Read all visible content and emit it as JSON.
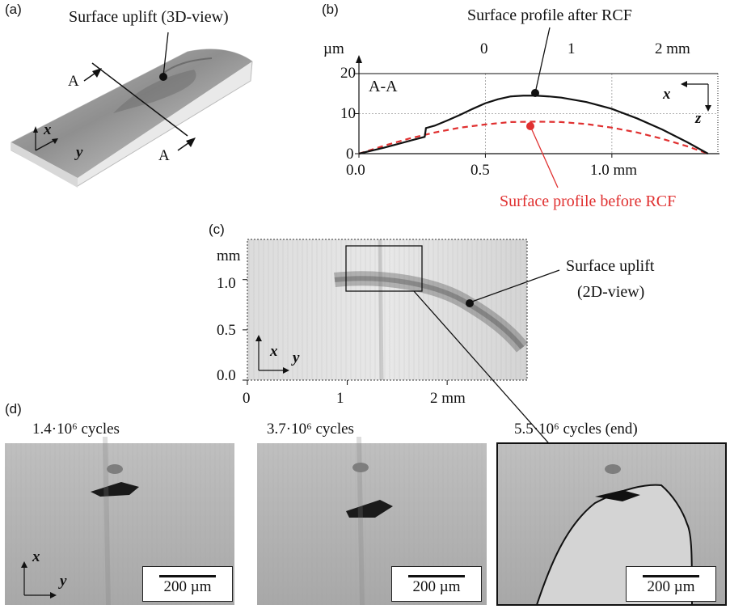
{
  "panels": {
    "a": {
      "label": "(a)",
      "annotation": "Surface uplift (3D-view)",
      "section_marker": "A",
      "axis_x": "x",
      "axis_y": "y"
    },
    "b": {
      "label": "(b)",
      "title_top": "Surface profile after RCF",
      "title_bottom": "Surface profile before RCF",
      "section_label": "A-A",
      "axis_x": "x",
      "axis_z": "z",
      "colors": {
        "after": "#111111",
        "before": "#e03030"
      }
    },
    "c": {
      "label": "(c)",
      "annotation_line1": "Surface uplift",
      "annotation_line2": "(2D-view)",
      "axis_x": "x",
      "axis_y": "y"
    },
    "d": {
      "label": "(d)",
      "images": [
        {
          "caption": "1.4·10⁶ cycles",
          "scale": "200 µm"
        },
        {
          "caption": "3.7·10⁶ cycles",
          "scale": "200 µm"
        },
        {
          "caption": "5.5·10⁶ cycles (end)",
          "scale": "200 µm"
        }
      ],
      "axis_x": "x",
      "axis_y": "y"
    }
  },
  "chart_data": [
    {
      "type": "line",
      "panel": "b",
      "xlabel": "mm",
      "ylabel": "µm",
      "xlim": [
        0.0,
        1.4
      ],
      "ylim": [
        0,
        20
      ],
      "x_ticks": [
        "0.0",
        "0.5",
        "1.0 mm"
      ],
      "y_ticks": [
        "0",
        "10",
        "20"
      ],
      "top_axis_unit": "µm",
      "top_ticks": [
        "0",
        "1",
        "2 mm"
      ],
      "grid": true,
      "series": [
        {
          "name": "Surface profile after RCF",
          "x": [
            0.0,
            0.1,
            0.2,
            0.26,
            0.265,
            0.3,
            0.35,
            0.4,
            0.45,
            0.5,
            0.55,
            0.6,
            0.65,
            0.7,
            0.75,
            0.8,
            0.9,
            1.0,
            1.1,
            1.2,
            1.3,
            1.38
          ],
          "y": [
            0.0,
            1.5,
            3.2,
            4.2,
            6.4,
            7.0,
            8.3,
            9.7,
            11.2,
            12.6,
            13.6,
            14.3,
            14.5,
            14.5,
            14.3,
            14.0,
            12.9,
            11.2,
            8.8,
            6.0,
            2.8,
            0.0
          ]
        },
        {
          "name": "Surface profile before RCF",
          "x": [
            0.0,
            0.1,
            0.2,
            0.3,
            0.4,
            0.5,
            0.6,
            0.7,
            0.8,
            0.9,
            1.0,
            1.1,
            1.2,
            1.3,
            1.38
          ],
          "y": [
            0.0,
            2.0,
            3.8,
            5.3,
            6.5,
            7.3,
            7.9,
            8.0,
            7.9,
            7.4,
            6.5,
            5.3,
            3.7,
            1.8,
            0.0
          ]
        }
      ]
    },
    {
      "type": "image",
      "panel": "c",
      "xlabel": "mm",
      "ylabel": "mm",
      "xlim": [
        0,
        2.8
      ],
      "ylim": [
        0.0,
        1.4
      ],
      "x_ticks": [
        "0",
        "1",
        "2 mm"
      ],
      "y_ticks": [
        "0.0",
        "0.5",
        "1.0"
      ],
      "y_unit": "mm"
    }
  ]
}
